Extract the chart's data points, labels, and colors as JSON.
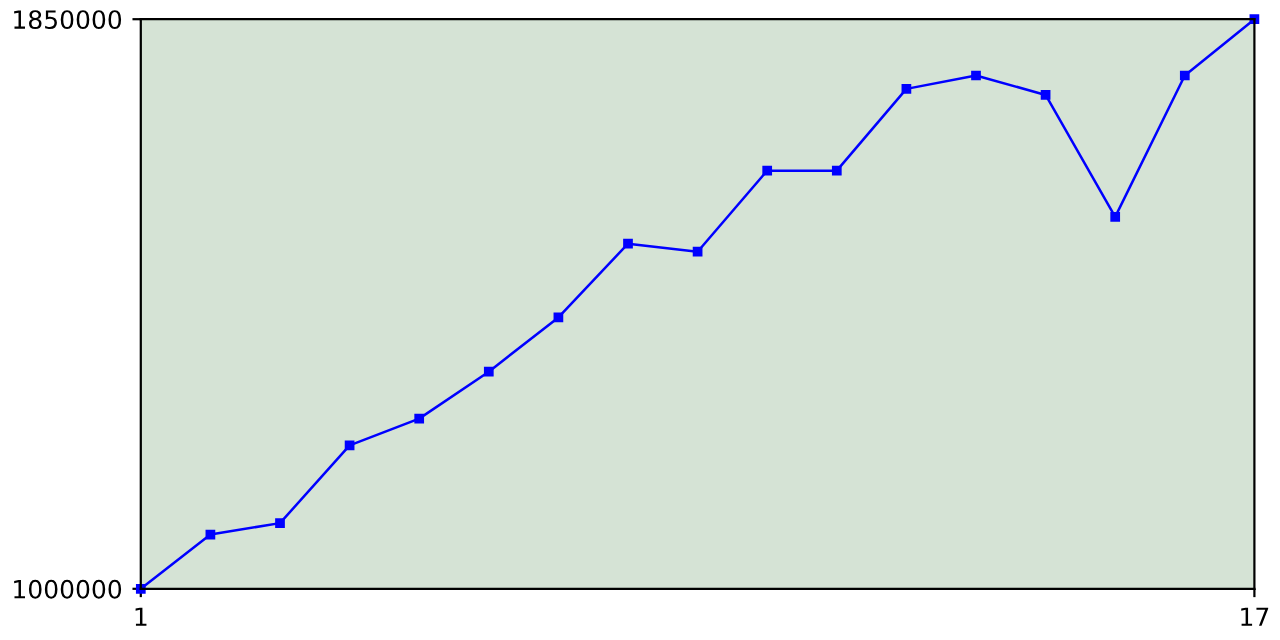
{
  "chart_data": {
    "type": "line",
    "x": [
      1,
      2,
      3,
      4,
      5,
      6,
      7,
      8,
      9,
      10,
      11,
      12,
      13,
      14,
      15,
      16,
      17
    ],
    "series": [
      {
        "color": "#0000ff",
        "values": [
          1000000,
          1081000,
          1098000,
          1214000,
          1254000,
          1324000,
          1405000,
          1515000,
          1503000,
          1624000,
          1624000,
          1746000,
          1766000,
          1737000,
          1555000,
          1766000,
          1850000
        ]
      }
    ],
    "xlim": [
      1,
      17
    ],
    "xticks": [
      1,
      17
    ],
    "ylim": [
      1000000,
      1850000
    ],
    "yticks": [
      1000000,
      1850000
    ],
    "grid": false,
    "legend": false,
    "marker": "square",
    "line_style": "solid"
  }
}
